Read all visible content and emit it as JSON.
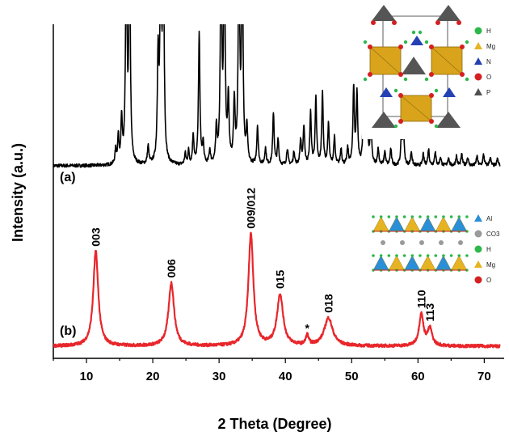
{
  "chart_data": {
    "type": "line",
    "xlabel": "2 Theta (Degree)",
    "ylabel": "Intensity (a.u.)",
    "xlim": [
      5,
      73
    ],
    "xticks": [
      "10",
      "20",
      "30",
      "40",
      "50",
      "60",
      "70"
    ],
    "grid": false,
    "series": [
      {
        "name": "(a)",
        "color": "#000000",
        "baseline": 0.0,
        "noise": 0.012,
        "peaks": [
          [
            14.4,
            0.1,
            0.12
          ],
          [
            14.8,
            0.2,
            0.12
          ],
          [
            15.3,
            0.32,
            0.12
          ],
          [
            16.0,
            1.6,
            0.13
          ],
          [
            16.5,
            1.6,
            0.13
          ],
          [
            19.3,
            0.13,
            0.13
          ],
          [
            20.8,
            0.75,
            0.13
          ],
          [
            21.2,
            1.6,
            0.13
          ],
          [
            21.6,
            1.6,
            0.13
          ],
          [
            24.9,
            0.08,
            0.12
          ],
          [
            25.4,
            0.1,
            0.12
          ],
          [
            26.1,
            0.22,
            0.12
          ],
          [
            27.0,
            0.95,
            0.13
          ],
          [
            27.6,
            0.15,
            0.12
          ],
          [
            28.6,
            0.1,
            0.12
          ],
          [
            29.6,
            0.25,
            0.13
          ],
          [
            30.3,
            1.6,
            0.13
          ],
          [
            30.8,
            1.6,
            0.13
          ],
          [
            31.4,
            0.45,
            0.13
          ],
          [
            32.3,
            0.45,
            0.13
          ],
          [
            33.0,
            1.6,
            0.13
          ],
          [
            33.5,
            1.6,
            0.13
          ],
          [
            34.2,
            0.25,
            0.13
          ],
          [
            35.8,
            0.28,
            0.13
          ],
          [
            37.0,
            0.12,
            0.13
          ],
          [
            38.2,
            0.38,
            0.13
          ],
          [
            38.9,
            0.18,
            0.13
          ],
          [
            40.3,
            0.12,
            0.13
          ],
          [
            41.3,
            0.1,
            0.13
          ],
          [
            42.3,
            0.18,
            0.13
          ],
          [
            42.8,
            0.28,
            0.13
          ],
          [
            43.8,
            0.38,
            0.13
          ],
          [
            44.6,
            0.48,
            0.13
          ],
          [
            45.6,
            0.52,
            0.13
          ],
          [
            46.5,
            0.3,
            0.13
          ],
          [
            47.4,
            0.2,
            0.13
          ],
          [
            48.4,
            0.12,
            0.13
          ],
          [
            49.4,
            0.12,
            0.13
          ],
          [
            50.3,
            0.56,
            0.13
          ],
          [
            50.8,
            0.52,
            0.13
          ],
          [
            51.8,
            0.45,
            0.13
          ],
          [
            52.3,
            0.5,
            0.13
          ],
          [
            52.9,
            0.32,
            0.13
          ],
          [
            54.0,
            0.12,
            0.13
          ],
          [
            55.0,
            0.1,
            0.13
          ],
          [
            55.9,
            0.12,
            0.13
          ],
          [
            57.5,
            0.18,
            0.13
          ],
          [
            57.8,
            0.28,
            0.13
          ],
          [
            59.0,
            0.1,
            0.13
          ],
          [
            60.8,
            0.08,
            0.13
          ],
          [
            61.6,
            0.12,
            0.13
          ],
          [
            62.6,
            0.1,
            0.13
          ],
          [
            63.4,
            0.06,
            0.13
          ],
          [
            64.6,
            0.06,
            0.13
          ],
          [
            65.8,
            0.07,
            0.13
          ],
          [
            66.6,
            0.08,
            0.13
          ],
          [
            67.5,
            0.06,
            0.13
          ],
          [
            68.9,
            0.07,
            0.13
          ],
          [
            69.9,
            0.08,
            0.13
          ],
          [
            70.9,
            0.06,
            0.13
          ],
          [
            72.0,
            0.05,
            0.13
          ]
        ]
      },
      {
        "name": "(b)",
        "color": "#e8262b",
        "baseline": 0.0,
        "noise": 0.012,
        "peaks": [
          [
            11.4,
            0.78,
            0.45
          ],
          [
            22.8,
            0.52,
            0.5
          ],
          [
            34.8,
            0.92,
            0.45
          ],
          [
            39.2,
            0.42,
            0.55
          ],
          [
            43.3,
            0.08,
            0.25
          ],
          [
            46.5,
            0.23,
            0.75
          ],
          [
            60.5,
            0.26,
            0.4
          ],
          [
            61.8,
            0.14,
            0.4
          ]
        ]
      }
    ],
    "annotations": [
      {
        "text": "003",
        "x": 11.4
      },
      {
        "text": "006",
        "x": 22.8
      },
      {
        "text": "009/012",
        "x": 34.8
      },
      {
        "text": "015",
        "x": 39.2
      },
      {
        "text": "*",
        "x": 43.3
      },
      {
        "text": "018",
        "x": 46.5
      },
      {
        "text": "110",
        "x": 60.5
      },
      {
        "text": "113",
        "x": 61.8
      }
    ]
  },
  "inset_a": {
    "legend": [
      {
        "label": "H",
        "color": "#2db84a",
        "shape": "circle"
      },
      {
        "label": "Mg",
        "color": "#e6b422",
        "shape": "triangle"
      },
      {
        "label": "N",
        "color": "#2441b3",
        "shape": "triangle"
      },
      {
        "label": "O",
        "color": "#d42020",
        "shape": "circle"
      },
      {
        "label": "P",
        "color": "#505050",
        "shape": "triangle"
      }
    ]
  },
  "inset_b": {
    "legend": [
      {
        "label": "Al",
        "color": "#2a8fd6",
        "shape": "triangle"
      },
      {
        "label": "CO3",
        "color": "#9a9a9a",
        "shape": "circle"
      },
      {
        "label": "H",
        "color": "#2db84a",
        "shape": "circle"
      },
      {
        "label": "Mg",
        "color": "#e6b422",
        "shape": "triangle"
      },
      {
        "label": "O",
        "color": "#d42020",
        "shape": "circle"
      }
    ]
  }
}
